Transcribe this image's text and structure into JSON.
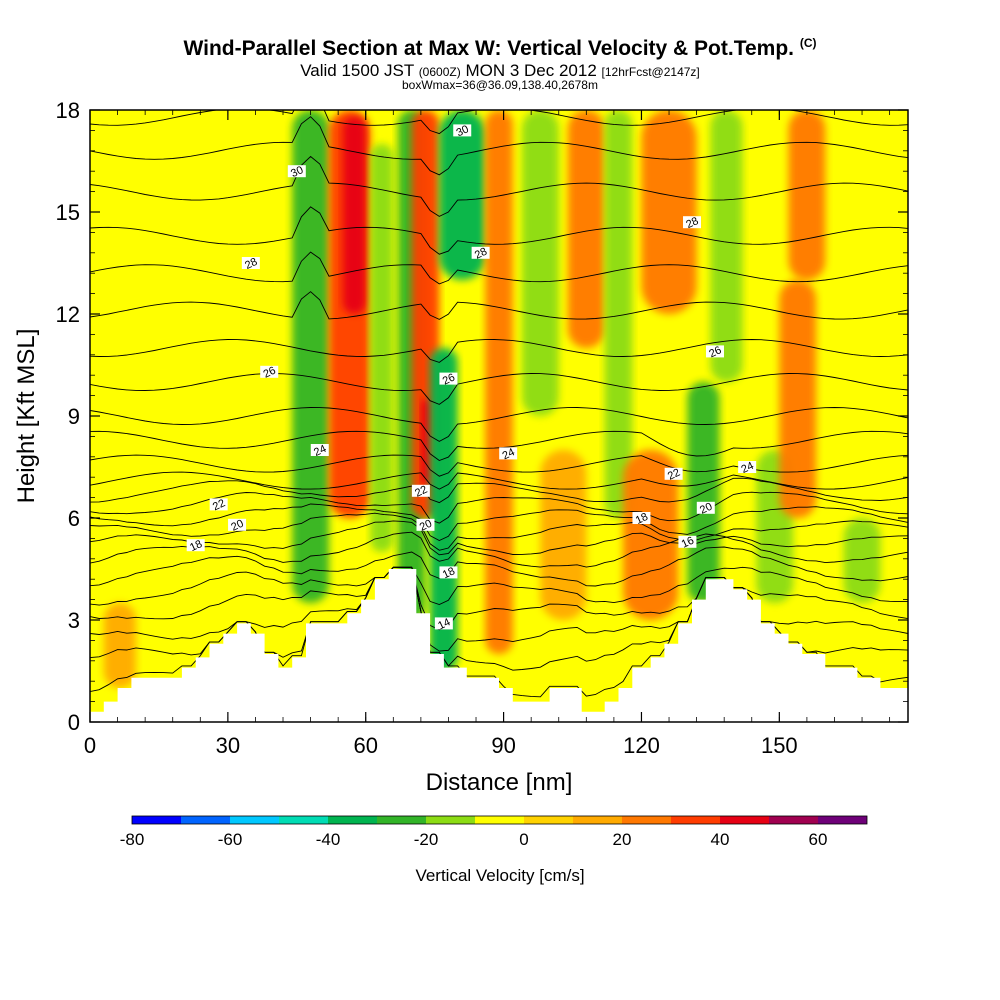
{
  "title": {
    "main": "Wind-Parallel Section at Max W: Vertical Velocity & Pot.Temp.",
    "copyright": "(C)",
    "valid_prefix": "Valid 1500 JST",
    "valid_z": "(0600Z)",
    "valid_date": "MON 3 Dec 2012",
    "forecast": "[12hrFcst@2147z]",
    "box": "boxWmax=36@36.09,138.40,2678m"
  },
  "chart_data": {
    "type": "heatmap",
    "xlabel": "Distance [nm]",
    "ylabel": "Height [Kft MSL]",
    "xlim": [
      0,
      178
    ],
    "ylim": [
      0,
      18
    ],
    "xticks": [
      0,
      30,
      60,
      90,
      120,
      150
    ],
    "yticks": [
      0,
      3,
      6,
      9,
      12,
      15,
      18
    ],
    "colorbar": {
      "label": "Vertical Velocity [cm/s]",
      "range": [
        -80,
        70
      ],
      "step": 10,
      "tick_values": [
        -80,
        -60,
        -40,
        -20,
        0,
        20,
        40,
        60
      ],
      "colors": [
        "#0000ff",
        "#0064ff",
        "#00c8ff",
        "#00dcb4",
        "#00b450",
        "#32b428",
        "#8cdc14",
        "#ffff00",
        "#ffd200",
        "#ffaa00",
        "#ff7800",
        "#ff3c00",
        "#e60014",
        "#a00050",
        "#6e0078"
      ]
    },
    "terrain_kft": [
      [
        0,
        0.3
      ],
      [
        3,
        0.3
      ],
      [
        3,
        0.6
      ],
      [
        6,
        0.6
      ],
      [
        6,
        1.0
      ],
      [
        9,
        1.0
      ],
      [
        9,
        1.3
      ],
      [
        20,
        1.3
      ],
      [
        20,
        1.6
      ],
      [
        23,
        1.6
      ],
      [
        23,
        1.9
      ],
      [
        26,
        1.9
      ],
      [
        26,
        2.3
      ],
      [
        29,
        2.3
      ],
      [
        29,
        2.6
      ],
      [
        32,
        2.6
      ],
      [
        32,
        2.9
      ],
      [
        35,
        2.9
      ],
      [
        35,
        2.6
      ],
      [
        38,
        2.6
      ],
      [
        38,
        2.0
      ],
      [
        41,
        2.0
      ],
      [
        41,
        1.6
      ],
      [
        44,
        1.6
      ],
      [
        44,
        1.9
      ],
      [
        47,
        1.9
      ],
      [
        47,
        2.9
      ],
      [
        56,
        2.9
      ],
      [
        56,
        3.2
      ],
      [
        59,
        3.2
      ],
      [
        59,
        3.6
      ],
      [
        62,
        3.6
      ],
      [
        62,
        4.2
      ],
      [
        65,
        4.2
      ],
      [
        65,
        4.5
      ],
      [
        71,
        4.5
      ],
      [
        71,
        3.2
      ],
      [
        74,
        3.2
      ],
      [
        74,
        2.0
      ],
      [
        77,
        2.0
      ],
      [
        77,
        1.6
      ],
      [
        82,
        1.6
      ],
      [
        82,
        1.3
      ],
      [
        89,
        1.3
      ],
      [
        89,
        1.0
      ],
      [
        92,
        1.0
      ],
      [
        92,
        0.6
      ],
      [
        100,
        0.6
      ],
      [
        100,
        1.0
      ],
      [
        107,
        1.0
      ],
      [
        107,
        0.3
      ],
      [
        112,
        0.3
      ],
      [
        112,
        0.6
      ],
      [
        115,
        0.6
      ],
      [
        115,
        1.0
      ],
      [
        118,
        1.0
      ],
      [
        118,
        1.6
      ],
      [
        122,
        1.6
      ],
      [
        122,
        1.9
      ],
      [
        125,
        1.9
      ],
      [
        125,
        2.3
      ],
      [
        128,
        2.3
      ],
      [
        128,
        2.9
      ],
      [
        131,
        2.9
      ],
      [
        131,
        3.6
      ],
      [
        134,
        3.6
      ],
      [
        134,
        4.2
      ],
      [
        140,
        4.2
      ],
      [
        140,
        3.9
      ],
      [
        143,
        3.9
      ],
      [
        143,
        3.6
      ],
      [
        146,
        3.6
      ],
      [
        146,
        2.9
      ],
      [
        149,
        2.9
      ],
      [
        149,
        2.6
      ],
      [
        152,
        2.6
      ],
      [
        152,
        2.3
      ],
      [
        155,
        2.3
      ],
      [
        155,
        2.0
      ],
      [
        160,
        2.0
      ],
      [
        160,
        1.6
      ],
      [
        167,
        1.6
      ],
      [
        167,
        1.3
      ],
      [
        172,
        1.3
      ],
      [
        172,
        1.0
      ],
      [
        178,
        1.0
      ]
    ],
    "vv_features": [
      {
        "x": [
          44,
          52
        ],
        "y": [
          3.5,
          18
        ],
        "value": -30
      },
      {
        "x": [
          52,
          61
        ],
        "y": [
          6,
          18
        ],
        "value": 30
      },
      {
        "x": [
          55,
          60
        ],
        "y": [
          12,
          17.8
        ],
        "value": 40
      },
      {
        "x": [
          61,
          66
        ],
        "y": [
          5,
          17
        ],
        "value": -20
      },
      {
        "x": [
          67,
          73
        ],
        "y": [
          3,
          18
        ],
        "value": -25
      },
      {
        "x": [
          70,
          76
        ],
        "y": [
          6,
          18
        ],
        "value": 30
      },
      {
        "x": [
          72,
          74
        ],
        "y": [
          7,
          9.5
        ],
        "value": 40
      },
      {
        "x": [
          74,
          80
        ],
        "y": [
          1.5,
          11
        ],
        "value": -35
      },
      {
        "x": [
          76,
          86
        ],
        "y": [
          13,
          18
        ],
        "value": -40
      },
      {
        "x": [
          86,
          92
        ],
        "y": [
          2,
          18
        ],
        "value": 20
      },
      {
        "x": [
          94,
          102
        ],
        "y": [
          9,
          18
        ],
        "value": -20
      },
      {
        "x": [
          98,
          108
        ],
        "y": [
          3,
          8
        ],
        "value": 10
      },
      {
        "x": [
          104,
          112
        ],
        "y": [
          11,
          18
        ],
        "value": 20
      },
      {
        "x": [
          112,
          118
        ],
        "y": [
          6,
          18
        ],
        "value": -20
      },
      {
        "x": [
          116,
          128
        ],
        "y": [
          3,
          8
        ],
        "value": 20
      },
      {
        "x": [
          120,
          132
        ],
        "y": [
          12,
          18
        ],
        "value": 20
      },
      {
        "x": [
          130,
          137
        ],
        "y": [
          3.5,
          10
        ],
        "value": -30
      },
      {
        "x": [
          135,
          142
        ],
        "y": [
          10,
          18
        ],
        "value": -20
      },
      {
        "x": [
          145,
          153
        ],
        "y": [
          3.5,
          8
        ],
        "value": -20
      },
      {
        "x": [
          150,
          158
        ],
        "y": [
          6,
          13
        ],
        "value": 25
      },
      {
        "x": [
          152,
          160
        ],
        "y": [
          13,
          18
        ],
        "value": 20
      },
      {
        "x": [
          164,
          172
        ],
        "y": [
          3.5,
          6
        ],
        "value": -20
      },
      {
        "x": [
          3,
          10
        ],
        "y": [
          1,
          3.5
        ],
        "value": 10
      }
    ],
    "theta_contour_labels": [
      {
        "text": "30",
        "x": 45,
        "y": 16.2
      },
      {
        "text": "30",
        "x": 81,
        "y": 17.4
      },
      {
        "text": "28",
        "x": 35,
        "y": 13.5
      },
      {
        "text": "28",
        "x": 85,
        "y": 13.8
      },
      {
        "text": "28",
        "x": 131,
        "y": 14.7
      },
      {
        "text": "26",
        "x": 39,
        "y": 10.3
      },
      {
        "text": "26",
        "x": 78,
        "y": 10.1
      },
      {
        "text": "26",
        "x": 136,
        "y": 10.9
      },
      {
        "text": "24",
        "x": 50,
        "y": 8.0
      },
      {
        "text": "24",
        "x": 91,
        "y": 7.9
      },
      {
        "text": "24",
        "x": 143,
        "y": 7.5
      },
      {
        "text": "22",
        "x": 28,
        "y": 6.4
      },
      {
        "text": "22",
        "x": 72,
        "y": 6.8
      },
      {
        "text": "22",
        "x": 127,
        "y": 7.3
      },
      {
        "text": "20",
        "x": 32,
        "y": 5.8
      },
      {
        "text": "20",
        "x": 73,
        "y": 5.8
      },
      {
        "text": "20",
        "x": 134,
        "y": 6.3
      },
      {
        "text": "18",
        "x": 23,
        "y": 5.2
      },
      {
        "text": "18",
        "x": 78,
        "y": 4.4
      },
      {
        "text": "18",
        "x": 120,
        "y": 6.0
      },
      {
        "text": "16",
        "x": 130,
        "y": 5.3
      },
      {
        "text": "14",
        "x": 77,
        "y": 2.9
      }
    ]
  }
}
